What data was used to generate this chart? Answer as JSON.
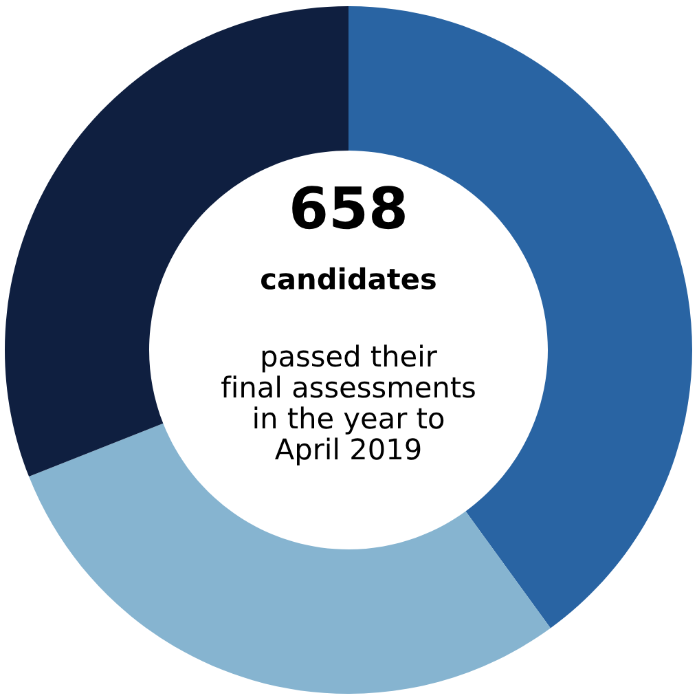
{
  "chart_data": {
    "type": "donut",
    "categories": [
      null,
      null,
      null
    ],
    "values": [
      40,
      29,
      31
    ],
    "colors": [
      "#2964a3",
      "#86b4d0",
      "#0f1f40"
    ],
    "annotations": [
      "658",
      "candidates",
      "passed their\nfinal assessments\nin the year to\nApril 2019"
    ]
  }
}
